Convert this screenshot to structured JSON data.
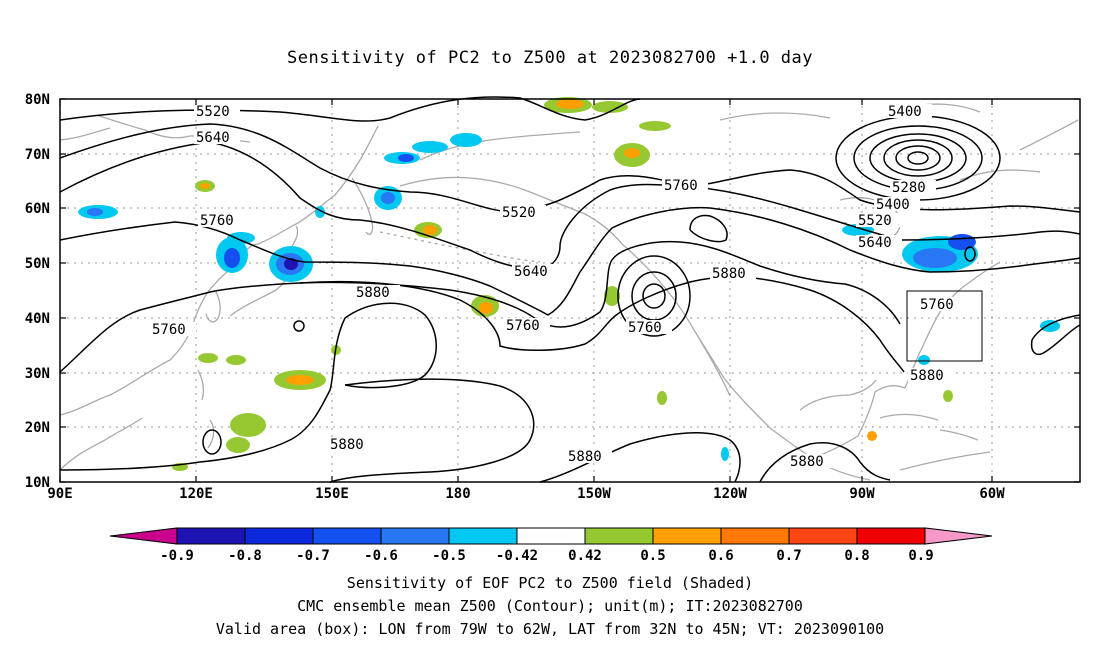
{
  "title": "Sensitivity of PC2 to Z500 at 2023082700 +1.0 day",
  "map": {
    "lat_ticks": [
      "80N",
      "70N",
      "60N",
      "50N",
      "40N",
      "30N",
      "20N",
      "10N"
    ],
    "lon_ticks": [
      "90E",
      "120E",
      "150E",
      "180",
      "150W",
      "120W",
      "90W",
      "60W"
    ],
    "extent": {
      "lon_min": 90,
      "lon_max": 315,
      "lat_min": 10,
      "lat_max": 80
    },
    "valid_box": {
      "lon_from": "79W",
      "lon_to": "62W",
      "lat_from": "32N",
      "lat_to": "45N"
    },
    "contour_labels": [
      "5520",
      "5640",
      "5760",
      "5880",
      "5400",
      "5280"
    ]
  },
  "colorbar": {
    "labels": [
      "-0.9",
      "-0.8",
      "-0.7",
      "-0.6",
      "-0.5",
      "-0.42",
      "0.42",
      "0.5",
      "0.6",
      "0.7",
      "0.8",
      "0.9"
    ],
    "colors": [
      "#c8008c",
      "#1e14b4",
      "#0a28dc",
      "#1450f0",
      "#2878f5",
      "#00c8f0",
      "#ffffff",
      "#96c832",
      "#ffa000",
      "#ff7800",
      "#ff4614",
      "#f00000",
      "#f59ac8"
    ]
  },
  "footer": {
    "line1": "Sensitivity of EOF PC2 to Z500 field (Shaded)",
    "line2": "CMC ensemble mean Z500 (Contour); unit(m); IT:2023082700",
    "line3": "Valid area (box): LON from 79W to 62W, LAT from 32N to 45N; VT: 2023090100"
  }
}
